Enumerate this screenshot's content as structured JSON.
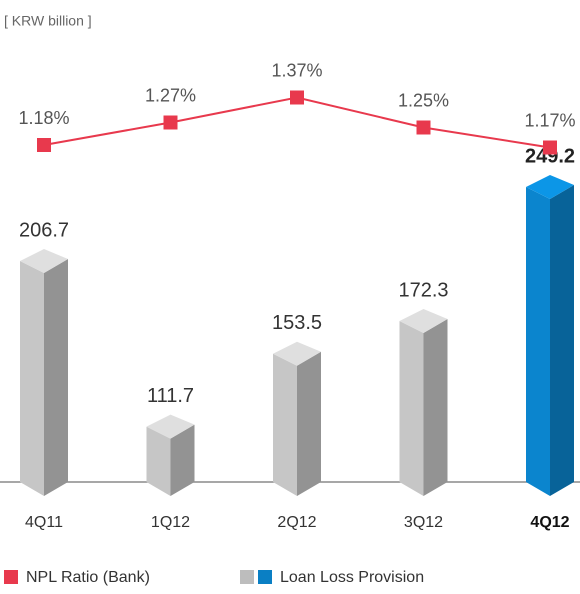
{
  "chart_data": {
    "type": "bar",
    "subtitle": "[ KRW billion ]",
    "categories": [
      "4Q11",
      "1Q12",
      "2Q12",
      "3Q12",
      "4Q12"
    ],
    "series": [
      {
        "name": "Loan Loss Provision",
        "type": "bar",
        "values": [
          206.7,
          111.7,
          153.5,
          172.3,
          249.2
        ],
        "colors": [
          "#bdbdbd",
          "#bdbdbd",
          "#bdbdbd",
          "#bdbdbd",
          "#0a7fc4"
        ]
      },
      {
        "name": "NPL Ratio (Bank)",
        "type": "line",
        "axis": "y2",
        "color": "#e8394d",
        "values": [
          1.18,
          1.27,
          1.37,
          1.25,
          1.17
        ],
        "value_labels": [
          "1.18%",
          "1.27%",
          "1.37%",
          "1.25%",
          "1.17%"
        ]
      }
    ],
    "ylim": [
      73,
      249.2
    ],
    "y2lim": [
      0.9,
      1.5
    ]
  }
}
